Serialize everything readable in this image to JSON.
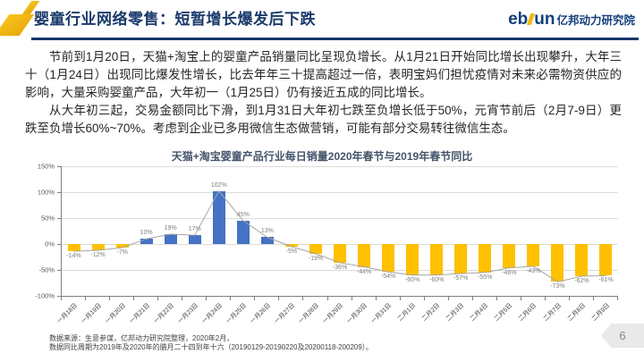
{
  "slide": {
    "title": "婴童行业网络零售：短暂增长爆发后下跌",
    "logo": {
      "text_left": "eb",
      "text_right": "un",
      "org": "亿邦动力研究院"
    },
    "page_number": "6"
  },
  "body": {
    "paragraph1": "节前到1月20日，天猫+淘宝上的婴童产品销量同比呈现负增长。从1月21日开始同比增长出现攀升，大年三十（1月24日）出现同比爆发性增长，比去年年三十提高超过一倍，表明宝妈们担忧疫情对未来必需物资供应的影响，大量采购婴童产品，大年初一（1月25日）仍有接近五成的同比增长。",
    "paragraph2": "从大年初三起，交易金额同比下滑，到1月31日大年初七跌至负增长低于50%，元宵节前后（2月7-9日）更跌至负增长60%~70%。考虑到企业已多用微信生态做营销，可能有部分交易转往微信生态。"
  },
  "chart_data": {
    "type": "bar",
    "title": "天猫+淘宝婴童产品行业每日销量2020年春节与2019年春节同比",
    "categories": [
      "一月18日",
      "一月19日",
      "一月20日",
      "一月21日",
      "一月22日",
      "一月23日",
      "一月24日",
      "一月25日",
      "一月26日",
      "一月27日",
      "一月28日",
      "一月29日",
      "一月30日",
      "一月31日",
      "二月1日",
      "二月2日",
      "二月3日",
      "二月4日",
      "二月5日",
      "二月6日",
      "二月7日",
      "二月8日",
      "二月9日"
    ],
    "values": [
      -14,
      -12,
      -7,
      10,
      19,
      17,
      102,
      45,
      13,
      -5,
      -19,
      -36,
      -44,
      -54,
      -60,
      -60,
      -57,
      -55,
      -46,
      -43,
      -73,
      -62,
      -61
    ],
    "labels": [
      "-14%",
      "-12%",
      "-7%",
      "10%",
      "19%",
      "17%",
      "102%",
      "45%",
      "13%",
      "-5%",
      "-19%",
      "-36%",
      "-44%",
      "-54%",
      "-60%",
      "-60%",
      "-57%",
      "-55%",
      "-46%",
      "-43%",
      "-73%",
      "-62%",
      "-61%"
    ],
    "line_overlay": true,
    "y_ticks": [
      "150%",
      "100%",
      "50%",
      "0%",
      "-50%",
      "-100%"
    ],
    "ylim": [
      -100,
      150
    ],
    "grid": "horizontal",
    "legend": "none",
    "colors": {
      "positive": "#4472c4",
      "negative": "#ffc000",
      "line": "#a6a6a6"
    }
  },
  "footer": {
    "line1": "数据来源：生意参谋，亿邦动力研究院整理，2020年2月，",
    "line2": "数据同比周期为2019年及2020年的腊月二十四到年十六（20190129-20190220及20200118-200209）。"
  }
}
